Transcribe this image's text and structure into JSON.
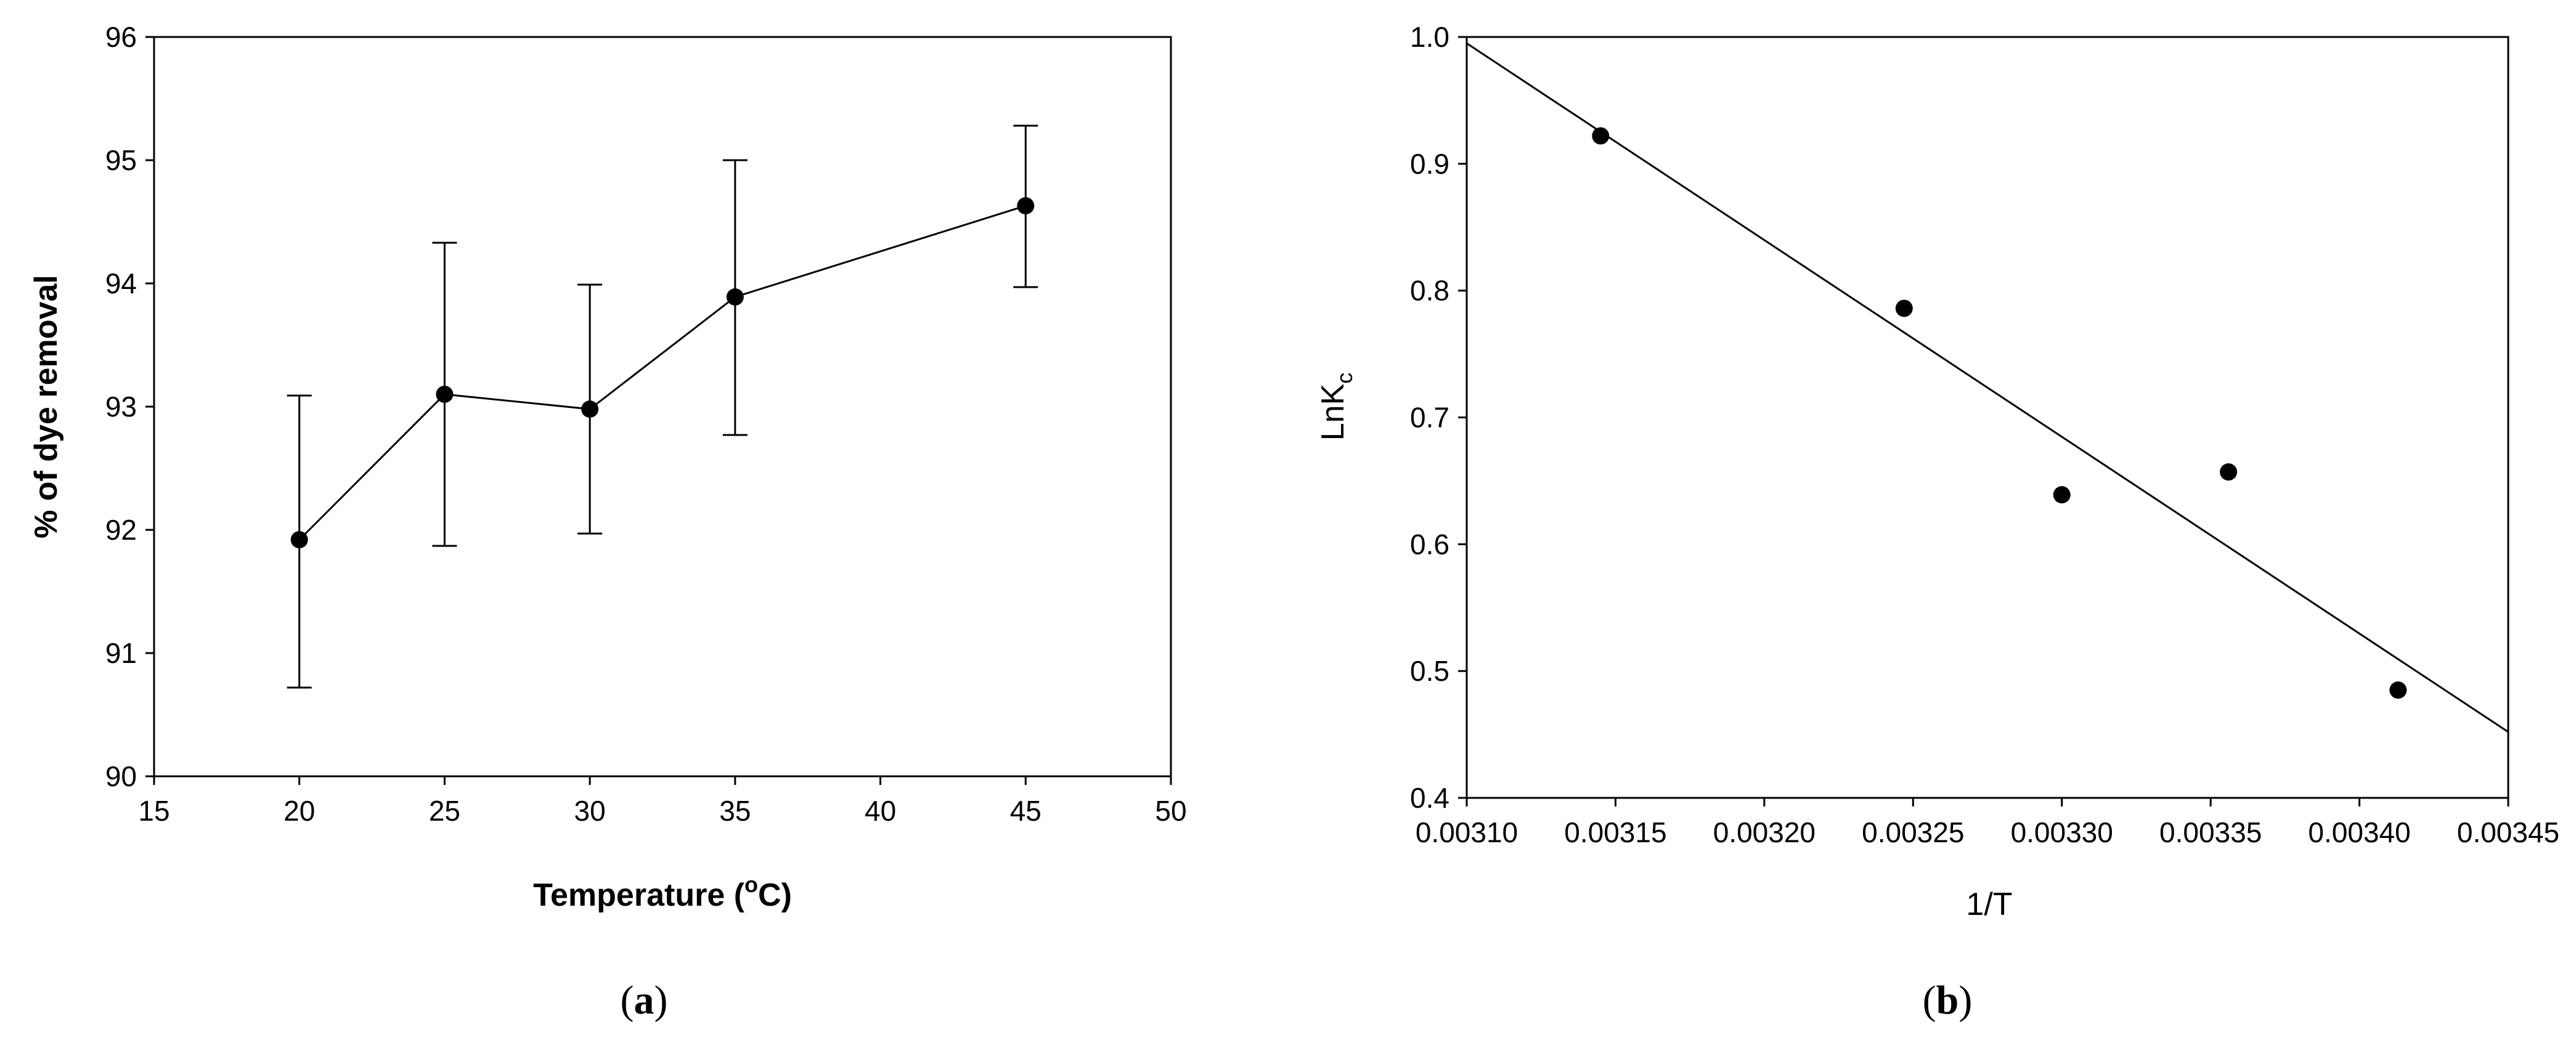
{
  "chart_data": [
    {
      "type": "line",
      "caption": "a",
      "xlabel": "Temperature (",
      "xlabel_sup": "o",
      "xlabel_after": "C)",
      "ylabel": "% of dye removal",
      "xlim": [
        15,
        50
      ],
      "ylim": [
        90,
        96
      ],
      "xticks": [
        15,
        20,
        25,
        30,
        35,
        40,
        45,
        50
      ],
      "yticks": [
        90,
        91,
        92,
        93,
        94,
        95,
        96
      ],
      "x": [
        20,
        25,
        30,
        35,
        45
      ],
      "y": [
        91.92,
        93.1,
        92.98,
        93.89,
        94.63
      ],
      "err_low": [
        90.72,
        91.87,
        91.97,
        92.77,
        93.97
      ],
      "err_high": [
        93.09,
        94.33,
        93.99,
        95.0,
        95.28
      ]
    },
    {
      "type": "scatter",
      "caption": "b",
      "xlabel": "1/T",
      "ylabel": "LnK",
      "ylabel_sub": "c",
      "xlim": [
        0.0031,
        0.00345
      ],
      "ylim": [
        0.4,
        1.0
      ],
      "xticks": [
        "0.00310",
        "0.00315",
        "0.00320",
        "0.00325",
        "0.00330",
        "0.00335",
        "0.00340",
        "0.00345"
      ],
      "yticks": [
        "0.4",
        "0.5",
        "0.6",
        "0.7",
        "0.8",
        "0.9",
        "1.0"
      ],
      "x": [
        0.003145,
        0.003247,
        0.0033,
        0.003356,
        0.003413
      ],
      "y": [
        0.922,
        0.786,
        0.639,
        0.657,
        0.485
      ],
      "fit_line": {
        "x": [
          0.0031,
          0.00345
        ],
        "y": [
          0.995,
          0.452
        ]
      }
    }
  ]
}
